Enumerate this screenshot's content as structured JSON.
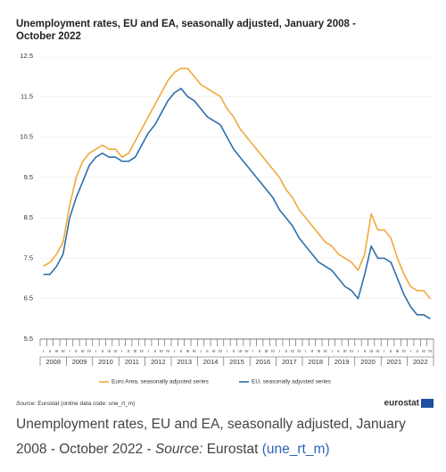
{
  "chart_data": {
    "type": "line",
    "title": "Unemployment rates, EU and EA, seasonally adjusted, January 2008 - October 2022",
    "categories": [
      "I",
      "II",
      "III",
      "IV",
      "I",
      "II",
      "III",
      "IV",
      "I",
      "II",
      "III",
      "IV",
      "I",
      "II",
      "III",
      "IV",
      "I",
      "II",
      "III",
      "IV",
      "I",
      "II",
      "III",
      "IV",
      "I",
      "II",
      "III",
      "IV",
      "I",
      "II",
      "III",
      "IV",
      "I",
      "II",
      "III",
      "IV",
      "I",
      "II",
      "III",
      "IV",
      "I",
      "II",
      "III",
      "IV",
      "I",
      "II",
      "III",
      "IV",
      "I",
      "II",
      "III",
      "IV",
      "I",
      "II",
      "III",
      "IV",
      "I",
      "II",
      "III",
      "IV"
    ],
    "years": [
      "2008",
      "2009",
      "2010",
      "2011",
      "2012",
      "2013",
      "2014",
      "2015",
      "2016",
      "2017",
      "2018",
      "2019",
      "2020",
      "2021",
      "2022"
    ],
    "series": [
      {
        "name": "Euro Area, seasonally adjusted series",
        "color": "#f2a93b",
        "values": [
          7.3,
          7.4,
          7.6,
          7.9,
          8.8,
          9.5,
          9.9,
          10.1,
          10.2,
          10.3,
          10.2,
          10.2,
          10.0,
          10.1,
          10.4,
          10.7,
          11.0,
          11.3,
          11.6,
          11.9,
          12.1,
          12.2,
          12.2,
          12.0,
          11.8,
          11.7,
          11.6,
          11.5,
          11.2,
          11.0,
          10.7,
          10.5,
          10.3,
          10.1,
          9.9,
          9.7,
          9.5,
          9.2,
          9.0,
          8.7,
          8.5,
          8.3,
          8.1,
          7.9,
          7.8,
          7.6,
          7.5,
          7.4,
          7.2,
          7.6,
          8.6,
          8.2,
          8.2,
          8.0,
          7.5,
          7.1,
          6.8,
          6.7,
          6.7,
          6.5
        ]
      },
      {
        "name": "EU, seasonally adjusted series",
        "color": "#2f6fa8",
        "values": [
          7.1,
          7.1,
          7.3,
          7.6,
          8.5,
          9.0,
          9.4,
          9.8,
          10.0,
          10.1,
          10.0,
          10.0,
          9.9,
          9.9,
          10.0,
          10.3,
          10.6,
          10.8,
          11.1,
          11.4,
          11.6,
          11.7,
          11.5,
          11.4,
          11.2,
          11.0,
          10.9,
          10.8,
          10.5,
          10.2,
          10.0,
          9.8,
          9.6,
          9.4,
          9.2,
          9.0,
          8.7,
          8.5,
          8.3,
          8.0,
          7.8,
          7.6,
          7.4,
          7.3,
          7.2,
          7.0,
          6.8,
          6.7,
          6.5,
          7.1,
          7.8,
          7.5,
          7.5,
          7.4,
          7.0,
          6.6,
          6.3,
          6.1,
          6.1,
          6.0
        ]
      }
    ],
    "ylim": [
      5.5,
      12.5
    ],
    "yticks": [
      5.5,
      6.5,
      7.5,
      8.5,
      9.5,
      10.5,
      11.5,
      12.5
    ],
    "grid": true,
    "source_label": "Source:",
    "source_text": "Eurostat (online data code: une_rt_m)",
    "logo": "eurostat"
  },
  "caption": {
    "text": "Unemployment rates, EU and EA, seasonally adjusted, January 2008 - October 2022 -",
    "source_label": "Source:",
    "source": "Eurostat",
    "link": "(une_rt_m)"
  }
}
